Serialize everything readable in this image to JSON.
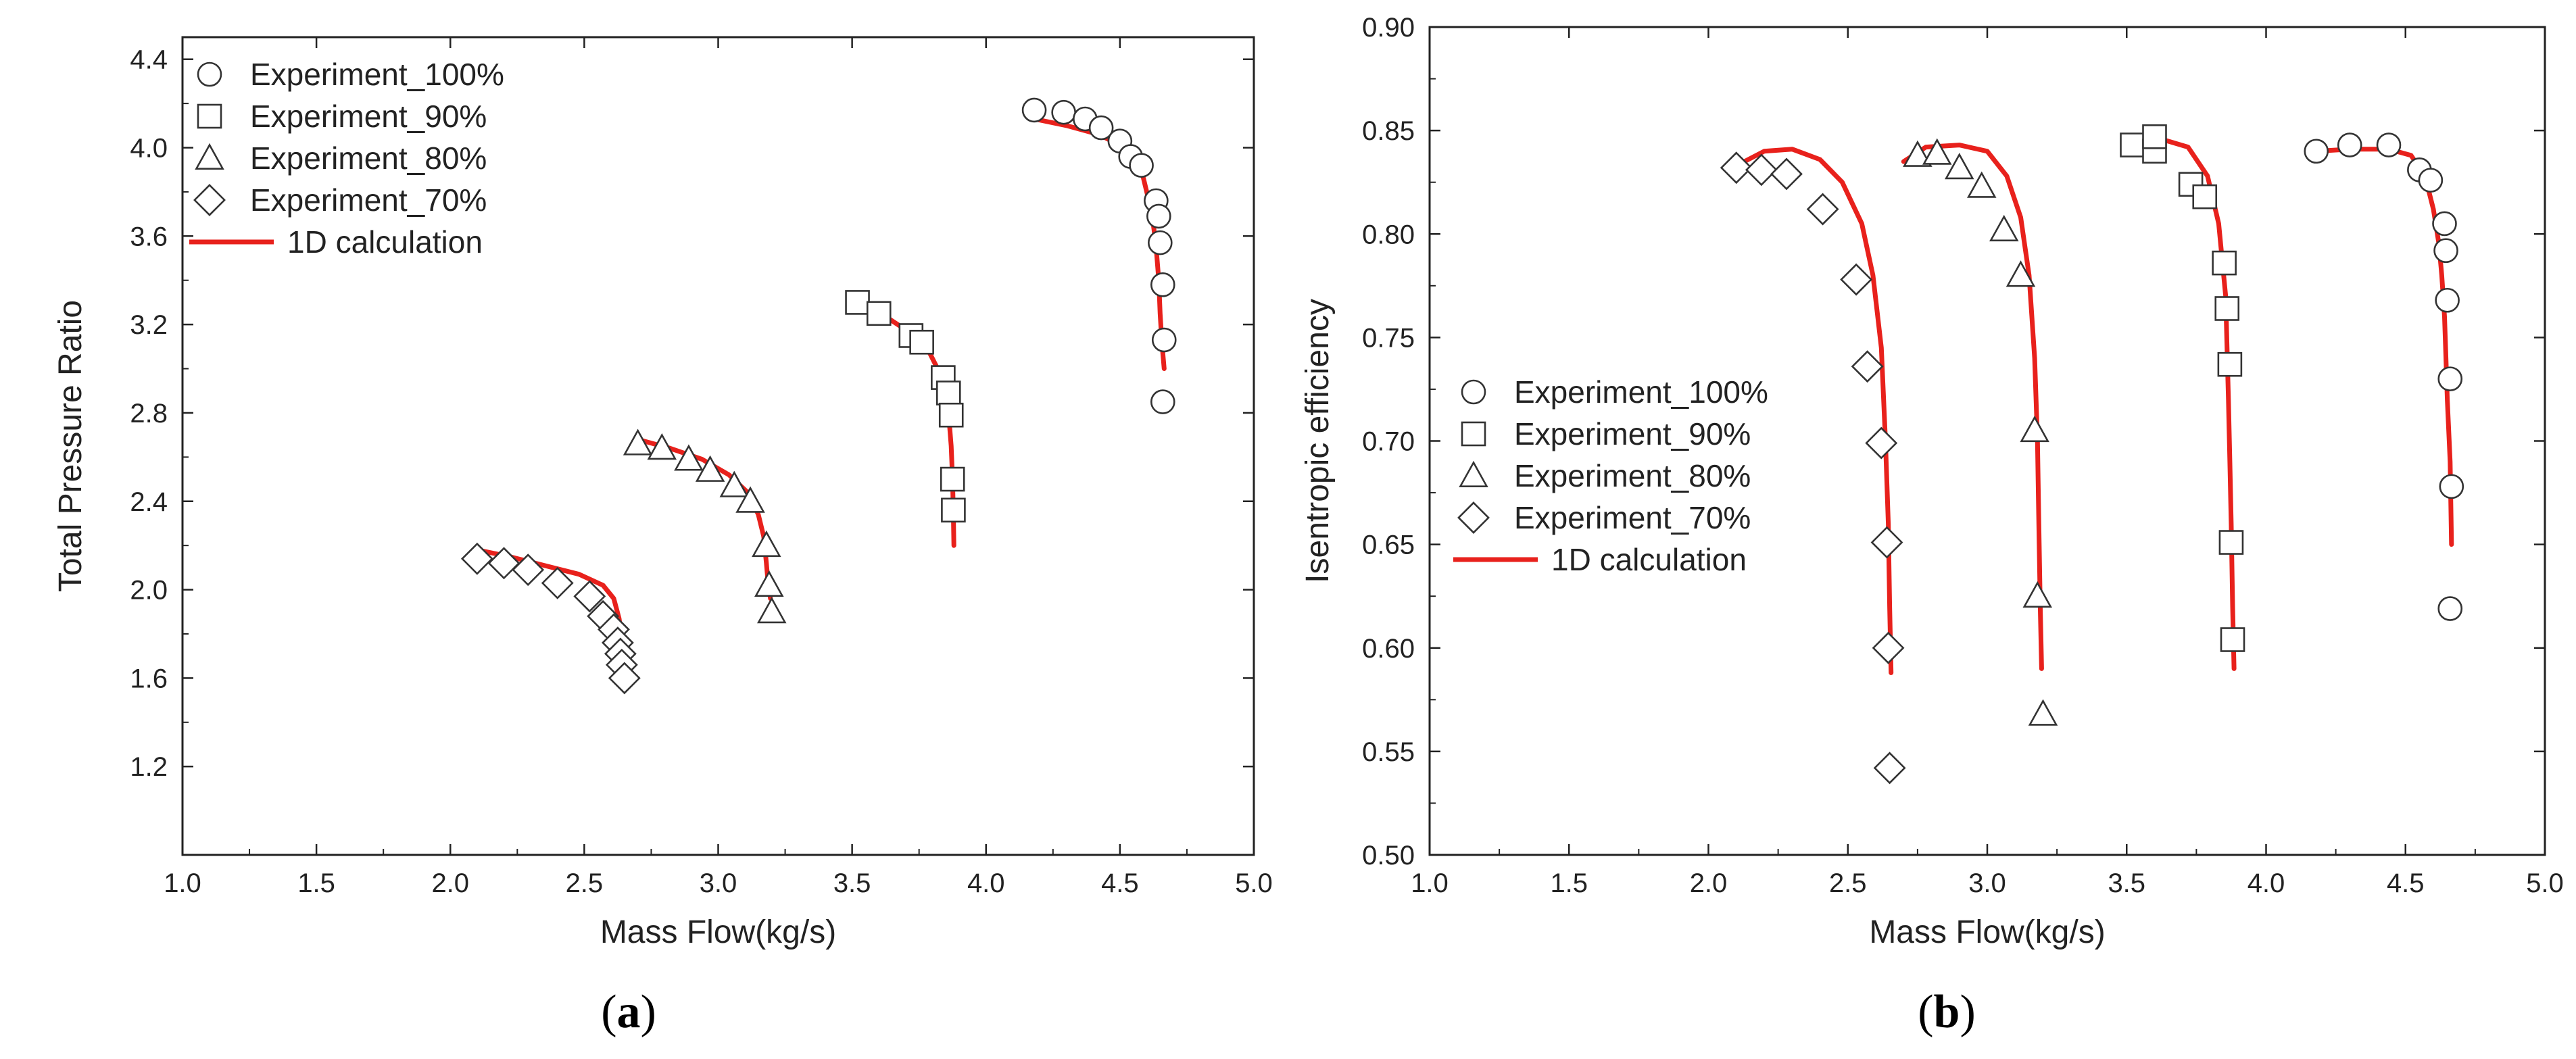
{
  "chart_data": [
    {
      "type": "line",
      "panel_label": "(a)",
      "panel_letter": "a",
      "xlabel": "Mass Flow(kg/s)",
      "ylabel": "Total Pressure Ratio",
      "xlim": [
        1.0,
        5.0
      ],
      "ylim": [
        0.8,
        4.5
      ],
      "xticks": [
        1.0,
        1.5,
        2.0,
        2.5,
        3.0,
        3.5,
        4.0,
        4.5,
        5.0
      ],
      "xtick_labels": [
        "1.0",
        "1.5",
        "2.0",
        "2.5",
        "3.0",
        "3.5",
        "4.0",
        "4.5",
        "5.0"
      ],
      "yticks": [
        1.2,
        1.6,
        2.0,
        2.4,
        2.8,
        3.2,
        3.6,
        4.0,
        4.4
      ],
      "ytick_labels": [
        "1.2",
        "1.6",
        "2.0",
        "2.4",
        "2.8",
        "3.2",
        "3.6",
        "4.0",
        "4.4"
      ],
      "legend_position": "top-left",
      "series": [
        {
          "name": "Experiment_100%",
          "marker": "circle",
          "kind": "scatter",
          "x": [
            4.18,
            4.29,
            4.37,
            4.43,
            4.5,
            4.54,
            4.58,
            4.635,
            4.645,
            4.65,
            4.66,
            4.665,
            4.66
          ],
          "y": [
            4.17,
            4.16,
            4.13,
            4.09,
            4.03,
            3.96,
            3.92,
            3.76,
            3.69,
            3.57,
            3.38,
            3.13,
            2.85
          ]
        },
        {
          "name": "Experiment_90%",
          "marker": "square",
          "kind": "scatter",
          "x": [
            3.52,
            3.6,
            3.72,
            3.76,
            3.84,
            3.86,
            3.87,
            3.875,
            3.878
          ],
          "y": [
            3.3,
            3.25,
            3.15,
            3.12,
            2.96,
            2.89,
            2.79,
            2.5,
            2.36
          ]
        },
        {
          "name": "Experiment_80%",
          "marker": "triangle",
          "kind": "scatter",
          "x": [
            2.7,
            2.79,
            2.89,
            2.97,
            3.06,
            3.12,
            3.18,
            3.19,
            3.2
          ],
          "y": [
            2.66,
            2.64,
            2.59,
            2.54,
            2.47,
            2.4,
            2.2,
            2.02,
            1.9
          ]
        },
        {
          "name": "Experiment_70%",
          "marker": "diamond",
          "kind": "scatter",
          "x": [
            2.1,
            2.2,
            2.29,
            2.4,
            2.52,
            2.57,
            2.61,
            2.625,
            2.635,
            2.64,
            2.65
          ],
          "y": [
            2.14,
            2.12,
            2.09,
            2.03,
            1.97,
            1.88,
            1.82,
            1.76,
            1.71,
            1.66,
            1.6
          ]
        },
        {
          "name": "1D calculation",
          "kind": "line",
          "color": "#e8211c",
          "segments": [
            {
              "x": [
                4.18,
                4.3,
                4.42,
                4.52,
                4.58,
                4.62,
                4.635,
                4.645,
                4.65,
                4.655,
                4.66,
                4.665
              ],
              "y": [
                4.13,
                4.1,
                4.06,
                4.0,
                3.9,
                3.7,
                3.55,
                3.4,
                3.25,
                3.15,
                3.07,
                3.0
              ]
            },
            {
              "x": [
                3.52,
                3.62,
                3.72,
                3.79,
                3.84,
                3.86,
                3.87,
                3.875,
                3.878,
                3.88
              ],
              "y": [
                3.28,
                3.24,
                3.16,
                3.07,
                2.95,
                2.8,
                2.65,
                2.5,
                2.35,
                2.2
              ]
            },
            {
              "x": [
                2.7,
                2.82,
                2.94,
                3.04,
                3.11,
                3.15,
                3.17,
                3.18,
                3.185,
                3.19,
                3.195
              ],
              "y": [
                2.68,
                2.64,
                2.59,
                2.52,
                2.44,
                2.34,
                2.24,
                2.12,
                2.05,
                2.0,
                1.96
              ]
            },
            {
              "x": [
                2.1,
                2.22,
                2.35,
                2.48,
                2.57,
                2.61,
                2.63,
                2.64,
                2.645,
                2.65
              ],
              "y": [
                2.18,
                2.15,
                2.11,
                2.07,
                2.02,
                1.96,
                1.87,
                1.78,
                1.7,
                1.63
              ]
            }
          ]
        }
      ]
    },
    {
      "type": "line",
      "panel_label": "(b)",
      "panel_letter": "b",
      "xlabel": "Mass Flow(kg/s)",
      "ylabel": "Isentropic efficiency",
      "xlim": [
        1.0,
        5.0
      ],
      "ylim": [
        0.5,
        0.9
      ],
      "xticks": [
        1.0,
        1.5,
        2.0,
        2.5,
        3.0,
        3.5,
        4.0,
        4.5,
        5.0
      ],
      "xtick_labels": [
        "1.0",
        "1.5",
        "2.0",
        "2.5",
        "3.0",
        "3.5",
        "4.0",
        "4.5",
        "5.0"
      ],
      "yticks": [
        0.5,
        0.55,
        0.6,
        0.65,
        0.7,
        0.75,
        0.8,
        0.85,
        0.9
      ],
      "ytick_labels": [
        "0.50",
        "0.55",
        "0.60",
        "0.65",
        "0.70",
        "0.75",
        "0.80",
        "0.85",
        "0.90"
      ],
      "legend_position": "center-left",
      "series": [
        {
          "name": "Experiment_100%",
          "marker": "circle",
          "kind": "scatter",
          "x": [
            4.18,
            4.3,
            4.44,
            4.55,
            4.59,
            4.64,
            4.645,
            4.65,
            4.66,
            4.665,
            4.66
          ],
          "y": [
            0.84,
            0.843,
            0.843,
            0.831,
            0.826,
            0.805,
            0.792,
            0.768,
            0.73,
            0.678,
            0.619
          ]
        },
        {
          "name": "Experiment_90%",
          "marker": "square",
          "kind": "scatter",
          "x": [
            3.52,
            3.6,
            3.6,
            3.73,
            3.78,
            3.85,
            3.86,
            3.87,
            3.875,
            3.88
          ],
          "y": [
            0.843,
            0.84,
            0.847,
            0.824,
            0.818,
            0.786,
            0.764,
            0.737,
            0.651,
            0.604
          ]
        },
        {
          "name": "Experiment_80%",
          "marker": "triangle",
          "kind": "scatter",
          "x": [
            2.75,
            2.82,
            2.9,
            2.98,
            3.06,
            3.12,
            3.17,
            3.18,
            3.2
          ],
          "y": [
            0.838,
            0.839,
            0.832,
            0.823,
            0.802,
            0.78,
            0.705,
            0.625,
            0.568
          ]
        },
        {
          "name": "Experiment_70%",
          "marker": "diamond",
          "kind": "scatter",
          "x": [
            2.1,
            2.19,
            2.28,
            2.41,
            2.53,
            2.57,
            2.62,
            2.64,
            2.645,
            2.65
          ],
          "y": [
            0.832,
            0.831,
            0.829,
            0.812,
            0.778,
            0.736,
            0.699,
            0.651,
            0.6,
            0.542
          ]
        },
        {
          "name": "1D calculation",
          "kind": "line",
          "color": "#e8211c",
          "segments": [
            {
              "x": [
                4.18,
                4.3,
                4.44,
                4.52,
                4.57,
                4.6,
                4.62,
                4.63,
                4.64,
                4.645,
                4.65,
                4.66,
                4.665
              ],
              "y": [
                0.84,
                0.841,
                0.841,
                0.838,
                0.828,
                0.812,
                0.795,
                0.78,
                0.76,
                0.74,
                0.72,
                0.69,
                0.65
              ]
            },
            {
              "x": [
                3.52,
                3.62,
                3.72,
                3.79,
                3.83,
                3.855,
                3.865,
                3.87,
                3.875,
                3.88,
                3.885
              ],
              "y": [
                0.845,
                0.846,
                0.842,
                0.828,
                0.805,
                0.77,
                0.72,
                0.69,
                0.66,
                0.62,
                0.59
              ]
            },
            {
              "x": [
                2.7,
                2.78,
                2.9,
                3.0,
                3.07,
                3.12,
                3.15,
                3.17,
                3.18,
                3.185,
                3.19,
                3.195
              ],
              "y": [
                0.835,
                0.842,
                0.843,
                0.84,
                0.828,
                0.808,
                0.78,
                0.74,
                0.7,
                0.66,
                0.62,
                0.59
              ]
            },
            {
              "x": [
                2.1,
                2.2,
                2.3,
                2.4,
                2.48,
                2.55,
                2.59,
                2.62,
                2.635,
                2.645,
                2.65,
                2.655
              ],
              "y": [
                0.833,
                0.84,
                0.841,
                0.836,
                0.825,
                0.805,
                0.78,
                0.745,
                0.7,
                0.66,
                0.62,
                0.588
              ]
            }
          ]
        }
      ]
    }
  ]
}
